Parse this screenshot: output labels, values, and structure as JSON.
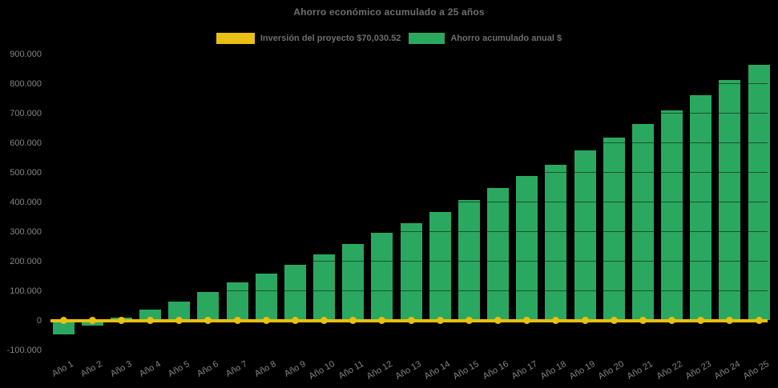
{
  "title": "Ahorro económico acumulado a 25 años",
  "legend": {
    "items": [
      {
        "label": "Inversión del proyecto $70,030.52",
        "color": "#E9C013"
      },
      {
        "label": "Ahorro acumulado anual $",
        "color": "#2BA85F"
      }
    ]
  },
  "colors": {
    "background": "#000000",
    "bar_green": "#2BA85F",
    "line_yellow": "#E9C013",
    "title_text": "#6E6E6E",
    "tick_text": "#858585"
  },
  "chart_data": {
    "type": "bar",
    "title": "Ahorro económico acumulado a 25 años",
    "categories": [
      "Año 1",
      "Año 2",
      "Año 3",
      "Año 4",
      "Año 5",
      "Año 6",
      "Año 7",
      "Año 8",
      "Año 9",
      "Año 10",
      "Año 11",
      "Año 12",
      "Año 13",
      "Año 14",
      "Año 15",
      "Año 16",
      "Año 17",
      "Año 18",
      "Año 19",
      "Año 20",
      "Año 21",
      "Año 22",
      "Año 23",
      "Año 24",
      "Año 25"
    ],
    "series": [
      {
        "name": "Inversión del proyecto $70,030.52",
        "type": "line",
        "color": "#E9C013",
        "marker": "circle",
        "values": [
          0,
          0,
          0,
          0,
          0,
          0,
          0,
          0,
          0,
          0,
          0,
          0,
          0,
          0,
          0,
          0,
          0,
          0,
          0,
          0,
          0,
          0,
          0,
          0,
          0
        ]
      },
      {
        "name": "Ahorro acumulado anual $",
        "type": "bar",
        "color": "#2BA85F",
        "values": [
          -46000,
          -18000,
          9000,
          37000,
          64000,
          97000,
          128000,
          158000,
          189000,
          224000,
          259000,
          295000,
          329000,
          367000,
          407000,
          447000,
          488000,
          527000,
          574000,
          617000,
          663000,
          710000,
          761000,
          813000,
          864000
        ]
      }
    ],
    "xlabel": "",
    "ylabel": "",
    "ylim": [
      -100000,
      900000
    ],
    "ytick_step": 100000,
    "ytick_labels": [
      "-100.000",
      "0",
      "100.000",
      "200.000",
      "300.000",
      "400.000",
      "500.000",
      "600.000",
      "700.000",
      "800.000",
      "900.000"
    ],
    "grid": false,
    "legend_position": "top-center",
    "background": "black"
  }
}
